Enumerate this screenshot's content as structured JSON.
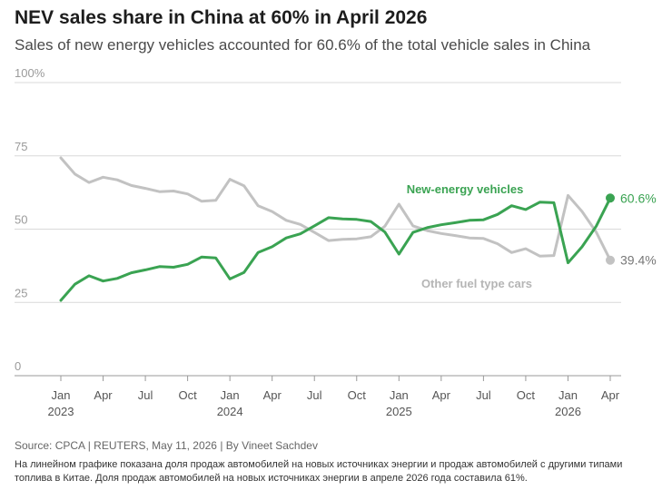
{
  "title": "NEV sales share in China at 60% in April 2026",
  "subtitle": "Sales of new energy vehicles accounted for 60.6% of the total vehicle sales in China",
  "source": "Source: CPCA | REUTERS, May 11, 2026 | By Vineet Sachdev",
  "note": "На линейном графике показана доля продаж автомобилей на новых источниках энергии и продаж автомобилей с другими типами топлива в Китае. Доля продаж автомобилей на новых источниках энергии в апреле 2026 года составила 61%.",
  "colors": {
    "nev": "#3aa352",
    "other": "#c2c2c2",
    "grid": "#d9d9d9",
    "axis": "#999999",
    "tick_text": "#555555"
  },
  "chart_data": {
    "type": "line",
    "ylim": [
      0,
      100
    ],
    "y_ticks": [
      0,
      25,
      50,
      75,
      100
    ],
    "y_tick_labels": [
      "0",
      "25",
      "50",
      "75",
      "100%"
    ],
    "x": [
      "Jan 2023",
      "Feb 2023",
      "Mar 2023",
      "Apr 2023",
      "May 2023",
      "Jun 2023",
      "Jul 2023",
      "Aug 2023",
      "Sep 2023",
      "Oct 2023",
      "Nov 2023",
      "Dec 2023",
      "Jan 2024",
      "Feb 2024",
      "Mar 2024",
      "Apr 2024",
      "May 2024",
      "Jun 2024",
      "Jul 2024",
      "Aug 2024",
      "Sep 2024",
      "Oct 2024",
      "Nov 2024",
      "Dec 2024",
      "Jan 2025",
      "Feb 2025",
      "Mar 2025",
      "Apr 2025",
      "May 2025",
      "Jun 2025",
      "Jul 2025",
      "Aug 2025",
      "Sep 2025",
      "Oct 2025",
      "Nov 2025",
      "Dec 2025",
      "Jan 2026",
      "Feb 2026",
      "Mar 2026",
      "Apr 2026"
    ],
    "x_ticks": [
      {
        "index": 0,
        "month": "Jan",
        "year": "2023"
      },
      {
        "index": 3,
        "month": "Apr",
        "year": ""
      },
      {
        "index": 6,
        "month": "Jul",
        "year": ""
      },
      {
        "index": 9,
        "month": "Oct",
        "year": ""
      },
      {
        "index": 12,
        "month": "Jan",
        "year": "2024"
      },
      {
        "index": 15,
        "month": "Apr",
        "year": ""
      },
      {
        "index": 18,
        "month": "Jul",
        "year": ""
      },
      {
        "index": 21,
        "month": "Oct",
        "year": ""
      },
      {
        "index": 24,
        "month": "Jan",
        "year": "2025"
      },
      {
        "index": 27,
        "month": "Apr",
        "year": ""
      },
      {
        "index": 30,
        "month": "Jul",
        "year": ""
      },
      {
        "index": 33,
        "month": "Oct",
        "year": ""
      },
      {
        "index": 36,
        "month": "Jan",
        "year": "2026"
      },
      {
        "index": 39,
        "month": "Apr",
        "year": ""
      }
    ],
    "series": [
      {
        "name": "New-energy vehicles",
        "values": [
          25.7,
          31.2,
          34.1,
          32.3,
          33.2,
          35.1,
          36.1,
          37.2,
          37.0,
          38.0,
          40.5,
          40.2,
          33.0,
          35.2,
          42.0,
          44.0,
          47.0,
          48.4,
          51.1,
          53.9,
          53.5,
          53.3,
          52.6,
          49.0,
          41.5,
          48.9,
          50.5,
          51.5,
          52.2,
          53.0,
          53.2,
          55.0,
          58.0,
          56.7,
          59.2,
          59.0,
          38.5,
          44.0,
          51.0,
          60.6
        ],
        "end_label": "60.6%"
      },
      {
        "name": "Other fuel type cars",
        "values": [
          74.3,
          68.8,
          65.9,
          67.7,
          66.8,
          64.9,
          63.9,
          62.8,
          63.0,
          62.0,
          59.5,
          59.8,
          67.0,
          64.8,
          58.0,
          56.0,
          53.0,
          51.6,
          48.9,
          46.1,
          46.5,
          46.7,
          47.4,
          51.0,
          58.5,
          51.1,
          49.5,
          48.5,
          47.8,
          47.0,
          46.8,
          45.0,
          42.0,
          43.3,
          40.8,
          41.0,
          61.5,
          56.0,
          49.0,
          39.4
        ],
        "end_label": "39.4%"
      }
    ]
  }
}
